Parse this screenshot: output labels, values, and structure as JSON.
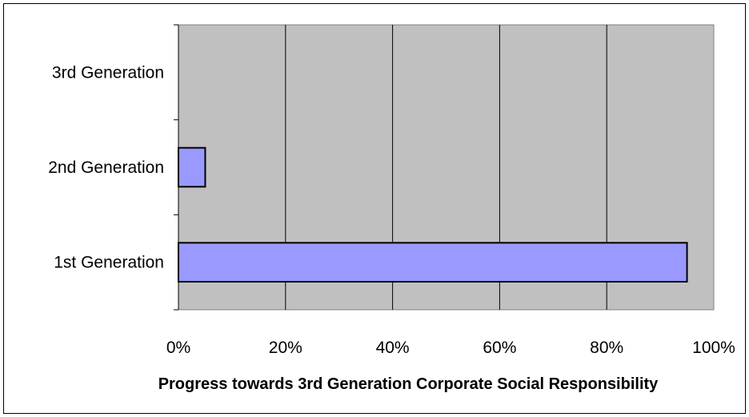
{
  "chart_data": {
    "type": "bar",
    "orientation": "horizontal",
    "title": "",
    "xlabel": "Progress towards 3rd Generation Corporate Social Responsibility",
    "ylabel": "",
    "categories": [
      "1st Generation",
      "2nd Generation",
      "3rd Generation"
    ],
    "values": [
      95,
      5,
      0
    ],
    "xlim": [
      0,
      100
    ],
    "x_ticks": [
      "0%",
      "20%",
      "40%",
      "60%",
      "80%",
      "100%"
    ],
    "grid": true,
    "legend": "none"
  },
  "colors": {
    "bar_fill": "#9999ff",
    "plot_background": "#c0c0c0",
    "bar_stroke": "#000000"
  }
}
